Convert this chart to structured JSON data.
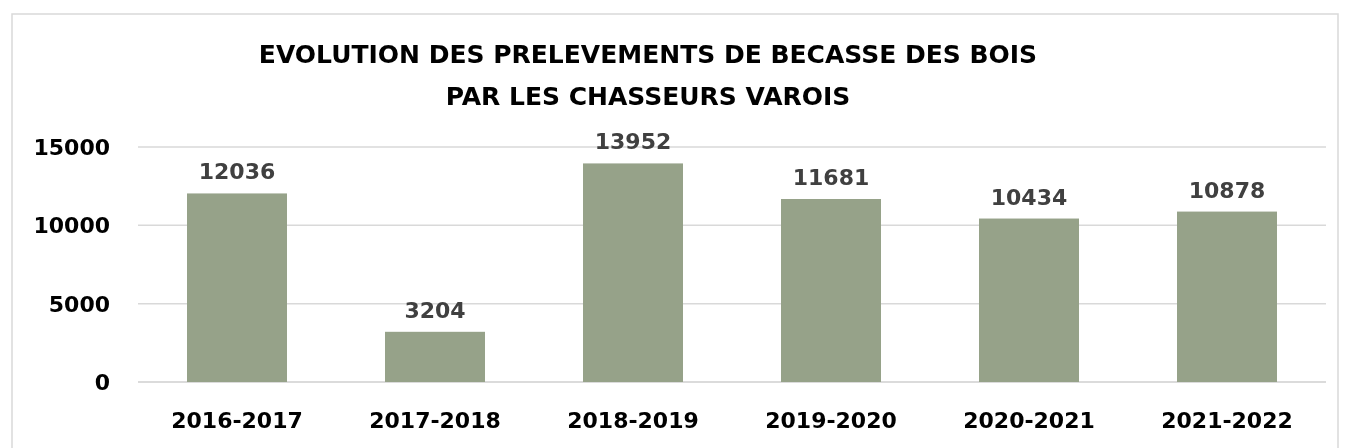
{
  "chart_data": {
    "type": "bar",
    "title": "EVOLUTION DES PRELEVEMENTS DE BECASSE DES BOIS\nPAR LES CHASSEURS VAROIS",
    "categories": [
      "2016-2017",
      "2017-2018",
      "2018-2019",
      "2019-2020",
      "2020-2021",
      "2021-2022"
    ],
    "values": [
      12036,
      3204,
      13952,
      11681,
      10434,
      10878
    ],
    "color": "#96a289",
    "ylim": [
      0,
      15000
    ],
    "yticks": [
      0,
      5000,
      10000,
      15000
    ],
    "grid": "y",
    "data_labels": true
  }
}
